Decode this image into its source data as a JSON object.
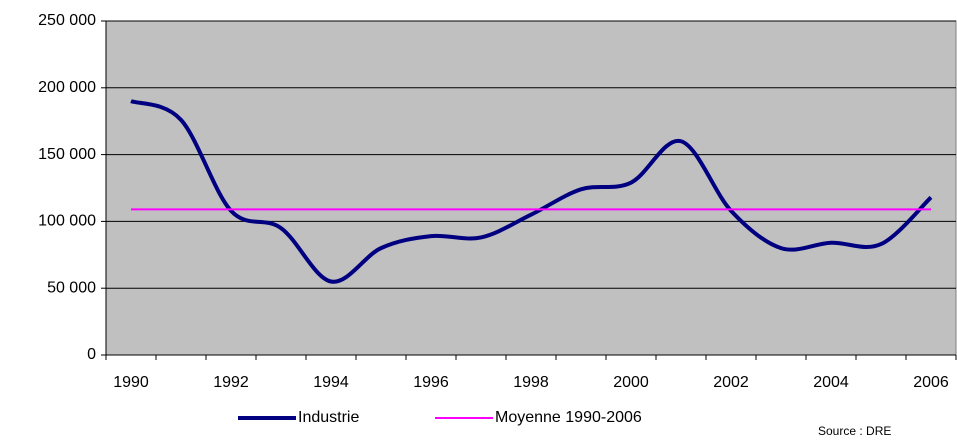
{
  "chart_data": {
    "type": "line",
    "categories": [
      "1990",
      null,
      "1992",
      null,
      "1994",
      null,
      "1996",
      null,
      "1998",
      null,
      "2000",
      null,
      "2002",
      null,
      "2004",
      null,
      "2006"
    ],
    "series": [
      {
        "name": "Industrie",
        "color": "#000080",
        "values": [
          190000,
          176000,
          108000,
          95000,
          55000,
          80000,
          89000,
          88000,
          105000,
          124000,
          129000,
          160000,
          108000,
          80000,
          84000,
          83000,
          118000
        ]
      },
      {
        "name": "Moyenne 1990-2006",
        "color": "#ff00ff",
        "values": [
          109000,
          109000,
          109000,
          109000,
          109000,
          109000,
          109000,
          109000,
          109000,
          109000,
          109000,
          109000,
          109000,
          109000,
          109000,
          109000,
          109000
        ]
      }
    ],
    "ylim": [
      0,
      250000
    ],
    "yticks": [
      0,
      {
        "value": 50000,
        "label": "50 000"
      },
      {
        "value": 100000,
        "label": "100 000"
      },
      {
        "value": 150000,
        "label": "150 000"
      },
      {
        "value": 200000,
        "label": "200 000"
      },
      {
        "value": 250000,
        "label": "250 000"
      }
    ],
    "grid": true,
    "legend": "bottom",
    "annotation": "Source : DRE"
  }
}
